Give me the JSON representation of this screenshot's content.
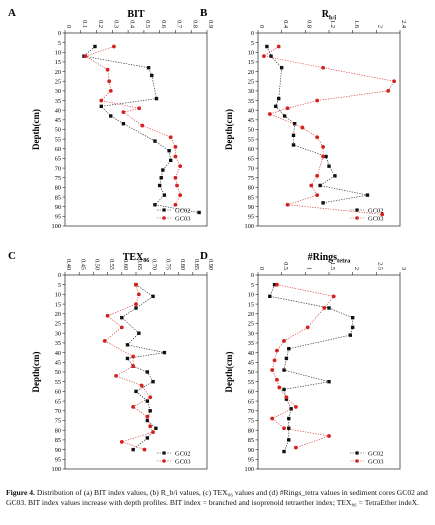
{
  "figure": {
    "caption_bold": "Figure 4.",
    "caption_text": " Distribution of (a) BIT index values, (b) R_b/i values, (c) TEX₈₆ values and (d) #Rings_tetra values in sediment cores GC02 and GC03. BIT index values increase with depth profiles. BIT index = branched and isoprenoid tetraether index; TEX₈₆ = TetraEther indeX."
  },
  "colors": {
    "gc02": "#111111",
    "gc03": "#d62020"
  },
  "chart_data": [
    {
      "type": "line",
      "panel_letter": "A",
      "title": "BIT",
      "ylabel": "Depth(cm)",
      "xlim": [
        0,
        0.9
      ],
      "xticks": [
        "0",
        "0.1",
        "0.2",
        "0.3",
        "0.4",
        "0.5",
        "0.6",
        "0.7",
        "0.8",
        "0.9"
      ],
      "ylim": [
        0,
        100
      ],
      "yticks": [
        0,
        5,
        10,
        15,
        20,
        25,
        30,
        35,
        40,
        45,
        50,
        55,
        60,
        65,
        70,
        75,
        80,
        85,
        90,
        95,
        100
      ],
      "legend_position": "bottom-right",
      "series": [
        {
          "name": "GC02",
          "color": "#111111",
          "marker": "square",
          "points": [
            [
              0.19,
              7
            ],
            [
              0.12,
              12
            ],
            [
              0.53,
              18
            ],
            [
              0.55,
              22
            ],
            [
              0.58,
              34
            ],
            [
              0.23,
              38
            ],
            [
              0.29,
              43
            ],
            [
              0.37,
              47
            ],
            [
              0.57,
              56
            ],
            [
              0.66,
              61
            ],
            [
              0.67,
              66
            ],
            [
              0.62,
              71
            ],
            [
              0.61,
              75
            ],
            [
              0.6,
              79
            ],
            [
              0.63,
              84
            ],
            [
              0.57,
              89
            ],
            [
              0.85,
              93
            ]
          ]
        },
        {
          "name": "GC03",
          "color": "#d62020",
          "marker": "circle",
          "points": [
            [
              0.31,
              7
            ],
            [
              0.13,
              12
            ],
            [
              0.27,
              19
            ],
            [
              0.28,
              25
            ],
            [
              0.29,
              30
            ],
            [
              0.23,
              35
            ],
            [
              0.47,
              39
            ],
            [
              0.37,
              41
            ],
            [
              0.49,
              48
            ],
            [
              0.67,
              54
            ],
            [
              0.7,
              59
            ],
            [
              0.7,
              64
            ],
            [
              0.73,
              69
            ],
            [
              0.7,
              75
            ],
            [
              0.71,
              79
            ],
            [
              0.73,
              84
            ],
            [
              0.7,
              89
            ]
          ]
        }
      ]
    },
    {
      "type": "line",
      "panel_letter": "B",
      "title": "R_b/i",
      "ylabel": "Depth(cm)",
      "xlim": [
        0,
        2.4
      ],
      "xticks": [
        "0",
        "0.4",
        "0.8",
        "1.2",
        "1.6",
        "2",
        "2.4"
      ],
      "ylim": [
        0,
        100
      ],
      "yticks": [
        0,
        5,
        10,
        15,
        20,
        25,
        30,
        35,
        40,
        45,
        50,
        55,
        60,
        65,
        70,
        75,
        80,
        85,
        90,
        95,
        100
      ],
      "legend_position": "bottom-right",
      "series": [
        {
          "name": "GC02",
          "color": "#111111",
          "marker": "square",
          "points": [
            [
              0.15,
              7
            ],
            [
              0.22,
              12
            ],
            [
              0.4,
              18
            ],
            [
              0.35,
              34
            ],
            [
              0.3,
              38
            ],
            [
              0.45,
              43
            ],
            [
              0.62,
              47
            ],
            [
              0.6,
              53
            ],
            [
              0.6,
              58
            ],
            [
              1.15,
              64
            ],
            [
              1.2,
              69
            ],
            [
              1.3,
              74
            ],
            [
              1.05,
              79
            ],
            [
              1.85,
              84
            ],
            [
              1.1,
              88
            ]
          ]
        },
        {
          "name": "GC03",
          "color": "#d62020",
          "marker": "circle",
          "points": [
            [
              0.35,
              7
            ],
            [
              0.1,
              12
            ],
            [
              1.1,
              18
            ],
            [
              2.3,
              25
            ],
            [
              2.2,
              30
            ],
            [
              1.0,
              35
            ],
            [
              0.5,
              39
            ],
            [
              0.2,
              42
            ],
            [
              0.75,
              49
            ],
            [
              1.0,
              54
            ],
            [
              1.1,
              59
            ],
            [
              1.1,
              64
            ],
            [
              1.0,
              74
            ],
            [
              0.9,
              79
            ],
            [
              1.0,
              84
            ],
            [
              0.5,
              89
            ],
            [
              2.1,
              94
            ]
          ]
        }
      ]
    },
    {
      "type": "line",
      "panel_letter": "C",
      "title": "TEX₈₆",
      "ylabel": "Depth(cm)",
      "xlim": [
        0.4,
        0.9
      ],
      "xticks": [
        "0.40",
        "0.45",
        "0.50",
        "0.55",
        "0.60",
        "0.65",
        "0.70",
        "0.75",
        "0.80",
        "0.85",
        "0.90"
      ],
      "ylim": [
        0,
        100
      ],
      "yticks": [
        0,
        5,
        10,
        15,
        20,
        25,
        30,
        35,
        40,
        45,
        50,
        55,
        60,
        65,
        70,
        75,
        80,
        85,
        90,
        95,
        100
      ],
      "legend_position": "bottom-right",
      "series": [
        {
          "name": "GC02",
          "color": "#111111",
          "marker": "square",
          "points": [
            [
              0.65,
              5
            ],
            [
              0.71,
              11
            ],
            [
              0.65,
              17
            ],
            [
              0.6,
              22
            ],
            [
              0.66,
              30
            ],
            [
              0.62,
              36
            ],
            [
              0.75,
              40
            ],
            [
              0.62,
              43
            ],
            [
              0.64,
              47
            ],
            [
              0.69,
              50
            ],
            [
              0.71,
              55
            ],
            [
              0.65,
              60
            ],
            [
              0.69,
              65
            ],
            [
              0.7,
              70
            ],
            [
              0.69,
              75
            ],
            [
              0.72,
              79
            ],
            [
              0.69,
              84
            ],
            [
              0.64,
              90
            ]
          ]
        },
        {
          "name": "GC03",
          "color": "#d62020",
          "marker": "circle",
          "points": [
            [
              0.65,
              5
            ],
            [
              0.66,
              10
            ],
            [
              0.65,
              15
            ],
            [
              0.55,
              21
            ],
            [
              0.6,
              27
            ],
            [
              0.54,
              34
            ],
            [
              0.64,
              42
            ],
            [
              0.64,
              47
            ],
            [
              0.58,
              52
            ],
            [
              0.67,
              57
            ],
            [
              0.7,
              63
            ],
            [
              0.64,
              68
            ],
            [
              0.69,
              73
            ],
            [
              0.7,
              78
            ],
            [
              0.71,
              81
            ],
            [
              0.6,
              86
            ],
            [
              0.68,
              90
            ]
          ]
        }
      ]
    },
    {
      "type": "line",
      "panel_letter": "D",
      "title": "#Rings_tetra",
      "ylabel": "Depth(cm)",
      "xlim": [
        0,
        3
      ],
      "xticks": [
        "0",
        "0.5",
        "1",
        "1.5",
        "2",
        "2.5",
        "3"
      ],
      "ylim": [
        0,
        100
      ],
      "yticks": [
        0,
        5,
        10,
        15,
        20,
        25,
        30,
        35,
        40,
        45,
        50,
        55,
        60,
        65,
        70,
        75,
        80,
        85,
        90,
        95,
        100
      ],
      "legend_position": "bottom-right",
      "series": [
        {
          "name": "GC02",
          "color": "#111111",
          "marker": "square",
          "points": [
            [
              0.35,
              5
            ],
            [
              0.25,
              11
            ],
            [
              1.5,
              17
            ],
            [
              2.0,
              22
            ],
            [
              2.0,
              27
            ],
            [
              1.95,
              31
            ],
            [
              0.65,
              38
            ],
            [
              0.6,
              43
            ],
            [
              0.55,
              49
            ],
            [
              1.5,
              55
            ],
            [
              0.55,
              59
            ],
            [
              0.6,
              64
            ],
            [
              0.7,
              69
            ],
            [
              0.65,
              74
            ],
            [
              0.65,
              79
            ],
            [
              0.65,
              85
            ],
            [
              0.55,
              91
            ]
          ]
        },
        {
          "name": "GC03",
          "color": "#d62020",
          "marker": "circle",
          "points": [
            [
              0.4,
              5
            ],
            [
              1.6,
              11
            ],
            [
              1.4,
              17
            ],
            [
              1.05,
              27
            ],
            [
              0.55,
              34
            ],
            [
              0.4,
              39
            ],
            [
              0.35,
              44
            ],
            [
              0.3,
              49
            ],
            [
              0.4,
              54
            ],
            [
              0.45,
              58
            ],
            [
              0.6,
              63
            ],
            [
              0.8,
              68
            ],
            [
              0.3,
              74
            ],
            [
              0.55,
              79
            ],
            [
              1.5,
              83
            ],
            [
              0.8,
              89
            ]
          ]
        }
      ]
    }
  ]
}
